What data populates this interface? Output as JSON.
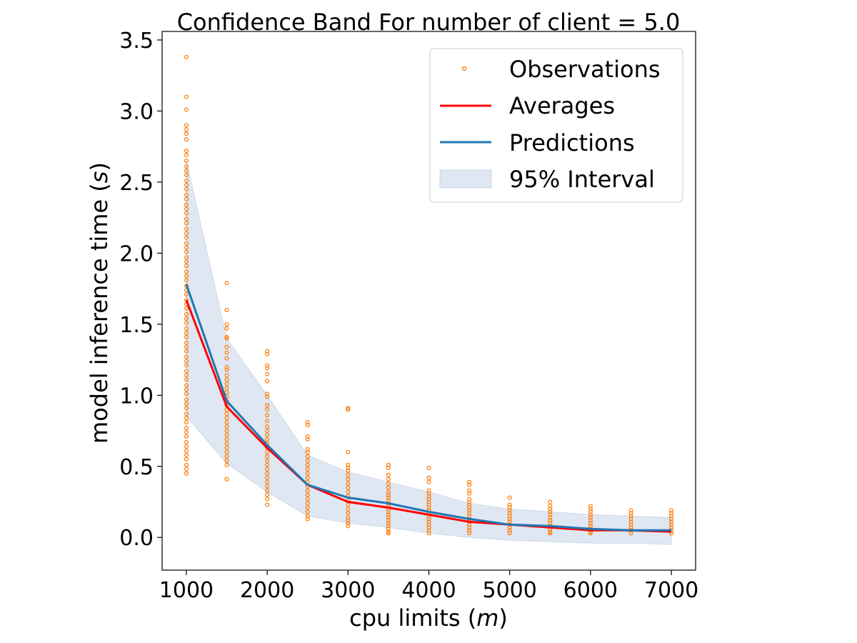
{
  "chart_data": {
    "type": "line",
    "title": "Confidence Band For number of client = 5.0",
    "xlabel_prefix": "cpu limits (",
    "xlabel_var": "m",
    "xlabel_suffix": ")",
    "ylabel_prefix": "model inference time (",
    "ylabel_var": "s",
    "ylabel_suffix": ")",
    "xlim": [
      700,
      7300
    ],
    "ylim": [
      -0.23,
      3.56
    ],
    "x_ticks": [
      1000,
      2000,
      3000,
      4000,
      5000,
      6000,
      7000
    ],
    "y_ticks": [
      0.0,
      0.5,
      1.0,
      1.5,
      2.0,
      2.5,
      3.0,
      3.5
    ],
    "y_tick_labels": [
      "0.0",
      "0.5",
      "1.0",
      "1.5",
      "2.0",
      "2.5",
      "3.0",
      "3.5"
    ],
    "grid": false,
    "legend_position": "top-right",
    "x": [
      1000,
      1500,
      2000,
      2500,
      3000,
      3500,
      4000,
      4500,
      5000,
      5500,
      6000,
      6500,
      7000
    ],
    "series": [
      {
        "name": "Averages",
        "color": "#ff0000",
        "values": [
          1.67,
          0.92,
          0.63,
          0.37,
          0.25,
          0.21,
          0.16,
          0.11,
          0.09,
          0.07,
          0.05,
          0.05,
          0.04
        ]
      },
      {
        "name": "Predictions",
        "color": "#1f77b4",
        "values": [
          1.78,
          0.96,
          0.65,
          0.37,
          0.28,
          0.24,
          0.18,
          0.13,
          0.09,
          0.08,
          0.06,
          0.05,
          0.05
        ]
      }
    ],
    "band": {
      "name": "95% Interval",
      "color": "#b0c4de",
      "lower": [
        0.85,
        0.52,
        0.32,
        0.15,
        0.1,
        0.07,
        0.03,
        0.0,
        -0.02,
        -0.03,
        -0.04,
        -0.04,
        -0.05
      ],
      "upper": [
        2.65,
        1.4,
        1.0,
        0.58,
        0.46,
        0.39,
        0.32,
        0.24,
        0.2,
        0.18,
        0.16,
        0.15,
        0.14
      ]
    },
    "observations": {
      "name": "Observations",
      "color": "#ff7f0e",
      "groups": [
        {
          "x": 1000,
          "ys": [
            3.38,
            3.1,
            3.01,
            2.9,
            2.87,
            2.84,
            2.8,
            2.72,
            2.69,
            2.65,
            2.61,
            2.58,
            2.55,
            2.51,
            2.48,
            2.45,
            2.41,
            2.38,
            2.34,
            2.31,
            2.28,
            2.24,
            2.21,
            2.17,
            2.14,
            2.11,
            2.07,
            2.04,
            2.01,
            1.97,
            1.94,
            1.91,
            1.87,
            1.84,
            1.81,
            1.77,
            1.74,
            1.71,
            1.67,
            1.64,
            1.61,
            1.57,
            1.54,
            1.51,
            1.47,
            1.44,
            1.41,
            1.37,
            1.34,
            1.31,
            1.27,
            1.24,
            1.21,
            1.17,
            1.14,
            1.11,
            1.07,
            1.04,
            1.01,
            0.97,
            0.94,
            0.91,
            0.87,
            0.84,
            0.81,
            0.77,
            0.74,
            0.71,
            0.67,
            0.64,
            0.61,
            0.58,
            0.55,
            0.51,
            0.48,
            0.45
          ]
        },
        {
          "x": 1500,
          "ys": [
            1.79,
            1.6,
            1.5,
            1.47,
            1.41,
            1.4,
            1.34,
            1.3,
            1.26,
            1.2,
            1.18,
            1.14,
            1.11,
            1.08,
            1.05,
            1.02,
            0.99,
            0.96,
            0.93,
            0.9,
            0.87,
            0.84,
            0.81,
            0.78,
            0.75,
            0.72,
            0.69,
            0.66,
            0.63,
            0.6,
            0.57,
            0.54,
            0.51,
            0.41
          ]
        },
        {
          "x": 2000,
          "ys": [
            1.31,
            1.29,
            1.21,
            1.19,
            1.15,
            1.1,
            1.01,
            0.99,
            0.93,
            0.9,
            0.86,
            0.82,
            0.78,
            0.75,
            0.72,
            0.69,
            0.66,
            0.63,
            0.6,
            0.57,
            0.54,
            0.51,
            0.48,
            0.45,
            0.42,
            0.39,
            0.36,
            0.33,
            0.3,
            0.27,
            0.23
          ]
        },
        {
          "x": 2500,
          "ys": [
            0.81,
            0.79,
            0.71,
            0.69,
            0.62,
            0.6,
            0.57,
            0.54,
            0.51,
            0.48,
            0.45,
            0.42,
            0.39,
            0.36,
            0.33,
            0.3,
            0.27,
            0.24,
            0.21,
            0.18,
            0.15,
            0.13
          ]
        },
        {
          "x": 3000,
          "ys": [
            0.91,
            0.9,
            0.6,
            0.51,
            0.49,
            0.47,
            0.44,
            0.41,
            0.38,
            0.35,
            0.32,
            0.29,
            0.26,
            0.23,
            0.2,
            0.17,
            0.14,
            0.12,
            0.1,
            0.08
          ]
        },
        {
          "x": 3500,
          "ys": [
            0.51,
            0.49,
            0.44,
            0.41,
            0.38,
            0.35,
            0.32,
            0.3,
            0.28,
            0.26,
            0.24,
            0.22,
            0.2,
            0.18,
            0.16,
            0.14,
            0.12,
            0.1,
            0.08,
            0.06,
            0.04,
            0.03
          ]
        },
        {
          "x": 4000,
          "ys": [
            0.49,
            0.42,
            0.39,
            0.33,
            0.31,
            0.29,
            0.27,
            0.25,
            0.23,
            0.21,
            0.19,
            0.17,
            0.15,
            0.13,
            0.11,
            0.09,
            0.07,
            0.05,
            0.03
          ]
        },
        {
          "x": 4500,
          "ys": [
            0.39,
            0.37,
            0.33,
            0.31,
            0.27,
            0.25,
            0.23,
            0.21,
            0.19,
            0.17,
            0.15,
            0.13,
            0.11,
            0.09,
            0.07,
            0.05,
            0.03
          ]
        },
        {
          "x": 5000,
          "ys": [
            0.28,
            0.23,
            0.21,
            0.19,
            0.17,
            0.15,
            0.13,
            0.11,
            0.09,
            0.07,
            0.05,
            0.03
          ]
        },
        {
          "x": 5500,
          "ys": [
            0.25,
            0.22,
            0.2,
            0.18,
            0.16,
            0.14,
            0.12,
            0.1,
            0.08,
            0.06,
            0.04,
            0.03
          ]
        },
        {
          "x": 6000,
          "ys": [
            0.22,
            0.2,
            0.18,
            0.16,
            0.14,
            0.12,
            0.1,
            0.08,
            0.06,
            0.04,
            0.03
          ]
        },
        {
          "x": 6500,
          "ys": [
            0.19,
            0.17,
            0.15,
            0.13,
            0.11,
            0.09,
            0.07,
            0.05,
            0.03
          ]
        },
        {
          "x": 7000,
          "ys": [
            0.19,
            0.17,
            0.15,
            0.13,
            0.11,
            0.09,
            0.07,
            0.05,
            0.03
          ]
        }
      ]
    }
  }
}
